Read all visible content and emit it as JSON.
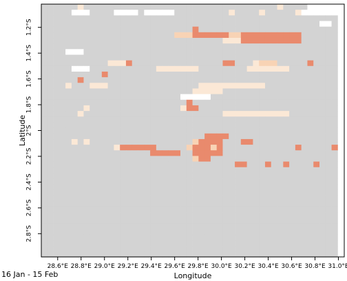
{
  "chart_data": {
    "type": "heatmap",
    "xlabel": "Longitude",
    "ylabel": "Latitude",
    "xlim": [
      28.46,
      31.05
    ],
    "ylim": [
      -2.98,
      -1.02
    ],
    "x_ticks": [
      {
        "value": 28.6,
        "label": "28.6°E"
      },
      {
        "value": 28.8,
        "label": "28.8°E"
      },
      {
        "value": 29.0,
        "label": "29.0°E"
      },
      {
        "value": 29.2,
        "label": "29.2°E"
      },
      {
        "value": 29.4,
        "label": "29.4°E"
      },
      {
        "value": 29.6,
        "label": "29.6°E"
      },
      {
        "value": 29.8,
        "label": "29.8°E"
      },
      {
        "value": 30.0,
        "label": "30.0°E"
      },
      {
        "value": 30.2,
        "label": "30.2°E"
      },
      {
        "value": 30.4,
        "label": "30.4°E"
      },
      {
        "value": 30.6,
        "label": "30.6°E"
      },
      {
        "value": 30.8,
        "label": "30.8°E"
      },
      {
        "value": 31.0,
        "label": "31.0°E"
      }
    ],
    "y_ticks": [
      {
        "value": -1.2,
        "label": "1.2°S"
      },
      {
        "value": -1.4,
        "label": "1.4°S"
      },
      {
        "value": -1.6,
        "label": "1.6°S"
      },
      {
        "value": -1.8,
        "label": "1.8°S"
      },
      {
        "value": -2.0,
        "label": "2°S"
      },
      {
        "value": -2.2,
        "label": "2.2°S"
      },
      {
        "value": -2.4,
        "label": "2.4°S"
      },
      {
        "value": -2.6,
        "label": "2.6°S"
      },
      {
        "value": -2.8,
        "label": "2.8°S"
      }
    ],
    "grid": false,
    "colors": {
      "G": "#d3d3d3",
      "W": "#ffffff",
      "l": "#fbe8d6",
      "p": "#f8d3b5",
      "m": "#f1b08f",
      "o": "#e98a6d"
    },
    "row_height_deg": 0.0436,
    "col_width_deg": 0.0517,
    "rows": [
      "GGGGGGlGGGGGGGGGGGGGGGGGGGGGGGGGGGGGGGGlGGGGWWWWW",
      "GGGGGWWWGGGGWWWWGWWWWWGGGGGGGGGlGGGGlGGGGGlWWWWWW",
      "GGGGGGGGGGGGGGGGGGGGGGGGGGGGGGGGGGGGGGGGGGGGGGGGG",
      "GGGGGGGGGGGGGGGGGGGGGGGGGGGGGGGGGGGGGGGGGGGGGGWWG",
      "GGGGGGGGGGGGGGGGGGGGGGGGGoGGGGGGGGGGGGGGGGGGGGGGG",
      "GGGGGGGGGGGGGGGGGGGGGGpppooooooppooooooooooGGGGGG",
      "GGGGGGGGGGGGGGGGGGGGGGGGGGGGGGlllooooooooooGGGGGG",
      "GGGGGGGGGGGGGGGGGGGGGGGGGGGGGGGGGGGGGGGGGGGGGGGGG",
      "GGGGWWWGGGGGGGGGGGGGGGGGGGGGGGGGGGGGGGGGGGGGGGGGG",
      "GGGGGGGGGGGGGGGGGGGGGGGGGGGGGGGGGGGGGGGGGGGGGGGGG",
      "GGGGGGGGGGGllloGGGGGGGGGGGGGGGooGGGlpppGGGGGoGGGG",
      "GGGGGWWWGGGGGGGGGGGlllllllGGGGGGGGlllllllGGGGGGGG",
      "GGGGGGGGGGoGGGGGGGGGGGGGGGGGGGGGGGGGGGGGGGGGGGGGG",
      "GGGGGGoGGGGGGGGGGGGGGGGGGGGGGGGGGGGGGGGGGGGGGGGGG",
      "GGGGlGGGlllGGGGGGGGGGGGGGGlllllllllllGGGGGGGGGGGG",
      "GGGGGGGGGGGGGGGGGGGGGGGGGlllllGGGGGGGGGGGGGGGGGGG",
      "GGGGGGGGGGGGGGGGGGGGGGGWWWWWGGGGGGGGGGGGGGGGGGGGG",
      "GGGGGGGGGGGGGGGGGGGGGGGGoGGGGGGGGGGGGGGGGGGGGGGGG",
      "GGGGGGGlGGGGGGGGGGGGGGGlooGGGGGGGGGGGGGGGGGGGGGGG",
      "GGGGGGlGGGGGGGGGGGGGGGGGGGGGGGlllllllllllGGGGGGGG",
      "GGGGGGGGGGGGGGGGGGGGGGGGGGGGGGGGGGGGGGGGGGGGGGGGG",
      "GGGGGGGGGGGGGGGGGGGGGGGGGGGGGGGGGGGGGGGGGGGGGGGGG",
      "GGGGGGGGGGGGGGGGGGGGGGGGGGGGGGGGGGGGGGGGGGGGGGGGG",
      "GGGGGGGGGGGGGGGGGGGGGGGGGGGooooGGGGGGGGGGGGGGGGGG",
      "GGGGGlGlGGGGGGGGGGGGGGGGGpooooGGGooGGGGGGGGGGGGGG",
      "GGGGGGGGGGGGlooooooGGGGGpooopoGGGGGGGGGGGGoGGGGGo",
      "GGGGGGGGGGGGGGGGGGoooooGGoooooGGGGGGGGGGGGGGGGGGG",
      "GGGGGGGGGGGGGGGGGGGGGGGGGpooGGGGGGGGGGGGGGGGGGGGG",
      "GGGGGGGGGGGGGGGGGGGGGGGGGGGGGGGGooGGGoGGoGGGGoGGG",
      "GGGGGGGGGGGGGGGGGGGGGGGGGGGGGGGGGGGGGGGGGGGGGGGGG",
      "GGGGGGGGGGGGGGGGGGGGGGGGGGGGGGGGGGGGGGGGGGGGGGGGG",
      "GGGGGGGGGGGGGGGGGGGGGGGGGGGGGGGGGGGGGGGGGGGGGGGGG",
      "GGGGGGGGGGGGGGGGGGGGGGGGGGGGGGGGGGGGGGGGGGGGGGGGG",
      "GGGGGGGGGGGGGGGGGGGGGGGGGGGGGGGGGGGGGGGGGGGGGGGGG",
      "GGGGGGGGGGGGGGGGGGGGGGGGGGGGGGGGGGGGGGGGGGGGGGGGG",
      "GGGGGGGGGGGGGGGGGGGGGGGGGGGGGGGGGGGGGGGGGGGGGGGGG",
      "GGGGGGGGGGGGGGGGGGGGGGGGGGGGGGGGGGGGGGGGGGGGGGGGG",
      "GGGGGGGGGGGGGGGGGGGGGGGGGGGGGGGGGGGGGGGGGGGGGGGGG",
      "GGGGGGGGGGGGGGGGGGGGGGGGGGGGGGGGGGGGGGGGGGGGGGGGG",
      "GGGGGGGGGGGGGGGGGGGGGGGGGGGGGGGGGGGGGGGGGGGGGGGGG",
      "GGGGGGGGGGGGGGGGGGGGGGGGGGGGGGGGGGGGGGGGGGGGGGGGG",
      "GGGGGGGGGGGGGGGGGGGGGGGGGGGGGGGGGGGGGGGGGGGGGGGGG",
      "GGGGGGGGGGGGGGGGGGGGGGGGGGGGGGGGGGGGGGGGGGGGGGGGG",
      "GGGGGGGGGGGGGGGGGGGGGGGGGGGGGGGGGGGGGGGGGGGGGGGGG",
      "GGGGGGGGGGGGGGGGGGGGGGGGGGGGGGGGGGGGGGGGGGGGGGGGG"
    ]
  },
  "period_label": "16 Jan  - 15 Feb"
}
